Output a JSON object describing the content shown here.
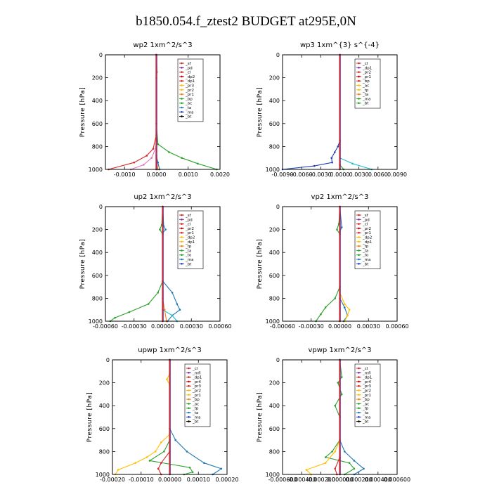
{
  "figure": {
    "title": "b1850.054.f_ztest2  BUDGET at295E,0N"
  },
  "chart_data": [
    {
      "type": "line",
      "title": "wp2  1xm^2/s^3",
      "ylabel": "Pressure [hPa]",
      "xlim": [
        -0.0016,
        0.002
      ],
      "ylim": [
        1000,
        0
      ],
      "xticks": [
        -0.001,
        0.0,
        0.001,
        0.002
      ],
      "xtick_labels": [
        "-0.0010",
        "0.0000",
        "0.0010",
        "0.0020"
      ],
      "yticks": [
        0,
        200,
        400,
        600,
        800,
        1000
      ],
      "ytick_labels": [
        "0",
        "200",
        "400",
        "600",
        "800",
        "1000"
      ],
      "legend": [
        "_sf",
        "_pd",
        "_cl",
        "_dp2",
        "_dp1",
        "_pr3",
        "_pr2",
        "_pr1",
        "_bp",
        "_ac",
        "_ta",
        "_ma",
        "_bt"
      ],
      "legend_loc": "top-right",
      "series": [
        {
          "color": "#2ca02c",
          "profile": [
            [
              0,
              0
            ],
            [
              600,
              0
            ],
            [
              780,
              5e-05
            ],
            [
              850,
              0.0004
            ],
            [
              900,
              0.0008
            ],
            [
              950,
              0.0013
            ],
            [
              1000,
              0.0019
            ]
          ]
        },
        {
          "color": "#d62728",
          "profile": [
            [
              0,
              0
            ],
            [
              700,
              0
            ],
            [
              820,
              -0.0001
            ],
            [
              880,
              -0.0003
            ],
            [
              940,
              -0.0007
            ],
            [
              1000,
              -0.0015
            ]
          ]
        },
        {
          "color": "#e377c2",
          "profile": [
            [
              0,
              0
            ],
            [
              800,
              0
            ],
            [
              900,
              -0.00015
            ],
            [
              960,
              -0.0004
            ],
            [
              1000,
              -0.0008
            ]
          ]
        },
        {
          "color": "#1f77b4",
          "profile": [
            [
              0,
              0
            ],
            [
              880,
              0
            ],
            [
              940,
              5e-05
            ],
            [
              1000,
              0.0001
            ]
          ]
        },
        {
          "color": "#ff7f0e",
          "profile": [
            [
              0,
              0
            ],
            [
              150,
              2e-05
            ],
            [
              200,
              0
            ],
            [
              900,
              0
            ],
            [
              1000,
              5e-05
            ]
          ]
        },
        {
          "color": "#7030a0",
          "profile": [
            [
              0,
              0
            ],
            [
              1000,
              0
            ]
          ]
        }
      ]
    },
    {
      "type": "line",
      "title": "wp3  1xm^{3} s^{-4}",
      "ylabel": "Pressure [hPa]",
      "xlim": [
        -0.009,
        0.009
      ],
      "ylim": [
        1000,
        0
      ],
      "xticks": [
        -0.009,
        -0.006,
        -0.003,
        0.0,
        0.003,
        0.006,
        0.009
      ],
      "xtick_labels": [
        "-0.0090",
        "-0.0060",
        "-0.0030",
        "0.0000",
        "0.0030",
        "0.0060",
        "0.0090"
      ],
      "yticks": [
        0,
        200,
        400,
        600,
        800,
        1000
      ],
      "ytick_labels": [
        "0",
        "200",
        "400",
        "600",
        "800",
        "1000"
      ],
      "legend": [
        "_cl",
        "_dp1",
        "_pr2",
        "_pr1",
        "_bp",
        "_ac",
        "_tp",
        "_ta",
        "_ma",
        "_bt"
      ],
      "legend_loc": "top-right",
      "series": [
        {
          "color": "#1f3fbf",
          "profile": [
            [
              0,
              0
            ],
            [
              750,
              0
            ],
            [
              800,
              -0.0003
            ],
            [
              850,
              -0.0008
            ],
            [
              900,
              -0.0013
            ],
            [
              940,
              -0.0012
            ],
            [
              970,
              -0.004
            ],
            [
              1000,
              -0.009
            ]
          ]
        },
        {
          "color": "#17becf",
          "profile": [
            [
              0,
              0
            ],
            [
              900,
              0
            ],
            [
              950,
              0.002
            ],
            [
              1000,
              0.005
            ]
          ]
        },
        {
          "color": "#2ca02c",
          "profile": [
            [
              0,
              0
            ],
            [
              960,
              0
            ],
            [
              1000,
              0.0006
            ]
          ]
        },
        {
          "color": "#d62728",
          "profile": [
            [
              0,
              0
            ],
            [
              1000,
              0
            ]
          ]
        }
      ]
    },
    {
      "type": "line",
      "title": "up2  1xm^2/s^3",
      "ylabel": "Pressure [hPa]",
      "xlim": [
        -0.0006,
        0.0006
      ],
      "ylim": [
        1000,
        0
      ],
      "xticks": [
        -0.0006,
        -0.0003,
        0.0,
        0.0003,
        0.0006
      ],
      "xtick_labels": [
        "-0.00060",
        "-0.00030",
        "0.00000",
        "0.00030",
        "0.00060"
      ],
      "yticks": [
        0,
        200,
        400,
        600,
        800,
        1000
      ],
      "ytick_labels": [
        "0",
        "200",
        "400",
        "600",
        "800",
        "1000"
      ],
      "legend": [
        "_sf",
        "_pd",
        "_cl",
        "_pr2",
        "_pr1",
        "_dp2",
        "_dp1",
        "_tp",
        "_ta",
        "_to",
        "_ma",
        "_bt"
      ],
      "legend_loc": "top-right",
      "series": [
        {
          "color": "#2ca02c",
          "profile": [
            [
              0,
              0
            ],
            [
              160,
              -1e-05
            ],
            [
              200,
              -3e-05
            ],
            [
              240,
              0
            ],
            [
              650,
              0
            ],
            [
              750,
              -5e-05
            ],
            [
              850,
              -0.00015
            ],
            [
              920,
              -0.00035
            ],
            [
              970,
              -0.0005
            ],
            [
              1000,
              -0.00055
            ]
          ]
        },
        {
          "color": "#1f77b4",
          "profile": [
            [
              0,
              0
            ],
            [
              170,
              1e-05
            ],
            [
              200,
              3e-05
            ],
            [
              230,
              0
            ],
            [
              650,
              0
            ],
            [
              750,
              0.0001
            ],
            [
              850,
              0.00015
            ],
            [
              900,
              0.00018
            ],
            [
              950,
              0.0001
            ],
            [
              1000,
              5e-05
            ]
          ]
        },
        {
          "color": "#ff7f0e",
          "profile": [
            [
              0,
              0
            ],
            [
              800,
              0
            ],
            [
              900,
              2e-05
            ],
            [
              1000,
              4e-05
            ]
          ]
        },
        {
          "color": "#17becf",
          "profile": [
            [
              0,
              0
            ],
            [
              900,
              0
            ],
            [
              950,
              0.0001
            ],
            [
              1000,
              0.00015
            ]
          ]
        },
        {
          "color": "#d62728",
          "profile": [
            [
              0,
              0
            ],
            [
              1000,
              0
            ]
          ]
        }
      ]
    },
    {
      "type": "line",
      "title": "vp2  1xm^2/s^3",
      "ylabel": "Pressure [hPa]",
      "xlim": [
        -0.0006,
        0.0006
      ],
      "ylim": [
        1000,
        0
      ],
      "xticks": [
        -0.0006,
        -0.0003,
        0.0,
        0.0003,
        0.0006
      ],
      "xtick_labels": [
        "-0.00060",
        "-0.00030",
        "0.00000",
        "0.00030",
        "0.00060"
      ],
      "yticks": [
        0,
        200,
        400,
        600,
        800,
        1000
      ],
      "ytick_labels": [
        "0",
        "200",
        "400",
        "600",
        "800",
        "1000"
      ],
      "legend": [
        "_sf",
        "_pd",
        "_cl",
        "_pr2",
        "_pr1",
        "_dp2",
        "_dp1",
        "_tp",
        "_ta",
        "_to",
        "_ma",
        "_bt"
      ],
      "legend_loc": "top-right",
      "series": [
        {
          "color": "#2ca02c",
          "profile": [
            [
              0,
              0
            ],
            [
              150,
              -1e-05
            ],
            [
              200,
              -3e-05
            ],
            [
              240,
              0
            ],
            [
              700,
              0
            ],
            [
              800,
              -5e-05
            ],
            [
              880,
              -0.00015
            ],
            [
              940,
              -0.0002
            ],
            [
              1000,
              -0.00025
            ]
          ]
        },
        {
          "color": "#1f77b4",
          "profile": [
            [
              0,
              0
            ],
            [
              180,
              2e-05
            ],
            [
              220,
              0
            ],
            [
              800,
              0
            ],
            [
              880,
              5e-05
            ],
            [
              950,
              8e-05
            ],
            [
              1000,
              4e-05
            ]
          ]
        },
        {
          "color": "#ffbf00",
          "profile": [
            [
              0,
              0
            ],
            [
              750,
              0
            ],
            [
              850,
              5e-05
            ],
            [
              900,
              0.0001
            ],
            [
              950,
              8e-05
            ],
            [
              1000,
              5e-05
            ]
          ]
        },
        {
          "color": "#d62728",
          "profile": [
            [
              0,
              0
            ],
            [
              1000,
              0
            ]
          ]
        }
      ]
    },
    {
      "type": "line",
      "title": "upwp  1xm^2/s^3",
      "ylabel": "Pressure [hPa]",
      "xlim": [
        -0.0002,
        0.0002
      ],
      "ylim": [
        1000,
        0
      ],
      "xticks": [
        -0.0002,
        -0.0001,
        0.0,
        0.0001,
        0.0002
      ],
      "xtick_labels": [
        "-0.00020",
        "-0.00010",
        "0.00000",
        "0.00010",
        "0.00020"
      ],
      "yticks": [
        0,
        200,
        400,
        600,
        800,
        1000
      ],
      "ytick_labels": [
        "0",
        "200",
        "400",
        "600",
        "800",
        "1000"
      ],
      "legend": [
        "_cl",
        "_mfl",
        "_dp1",
        "_pr4",
        "_pr3",
        "_pr2",
        "_pr1",
        "_bp",
        "_ac",
        "_tp",
        "_ta",
        "_ma",
        "_bt"
      ],
      "legend_loc": "top-right",
      "series": [
        {
          "color": "#ffbf00",
          "profile": [
            [
              0,
              0
            ],
            [
              120,
              0
            ],
            [
              170,
              -1e-05
            ],
            [
              220,
              0
            ],
            [
              650,
              0
            ],
            [
              720,
              -3e-05
            ],
            [
              800,
              -5e-05
            ],
            [
              850,
              -8e-05
            ],
            [
              900,
              -0.00012
            ],
            [
              960,
              -0.00018
            ],
            [
              1000,
              -0.00019
            ]
          ]
        },
        {
          "color": "#1f77b4",
          "profile": [
            [
              0,
              0
            ],
            [
              600,
              0
            ],
            [
              700,
              2e-05
            ],
            [
              800,
              6e-05
            ],
            [
              900,
              0.00012
            ],
            [
              950,
              0.00018
            ],
            [
              1000,
              0.00015
            ]
          ]
        },
        {
          "color": "#2ca02c",
          "profile": [
            [
              0,
              0
            ],
            [
              700,
              0
            ],
            [
              800,
              -2e-05
            ],
            [
              880,
              -7e-05
            ],
            [
              940,
              7e-05
            ],
            [
              980,
              8e-05
            ],
            [
              1000,
              5e-05
            ]
          ]
        },
        {
          "color": "#d62728",
          "profile": [
            [
              0,
              0
            ],
            [
              800,
              0
            ],
            [
              900,
              -3e-05
            ],
            [
              950,
              -4e-05
            ],
            [
              1000,
              -3e-05
            ]
          ]
        },
        {
          "color": "#7030a0",
          "profile": [
            [
              0,
              0
            ],
            [
              1000,
              0
            ]
          ]
        }
      ]
    },
    {
      "type": "line",
      "title": "vpwp  1xm^2/s^3",
      "ylabel": "Pressure [hPa]",
      "xlim": [
        -0.0006,
        0.0006
      ],
      "ylim": [
        1000,
        0
      ],
      "xticks": [
        -0.0006,
        -0.0004,
        -0.0002,
        0.0,
        0.0002,
        0.0004,
        0.0006
      ],
      "xtick_labels": [
        "-0.000600",
        "-0.000400",
        "-0.000200",
        "0.000000",
        "0.000200",
        "0.000400",
        "0.000600"
      ],
      "yticks": [
        0,
        200,
        400,
        600,
        800,
        1000
      ],
      "ytick_labels": [
        "0",
        "200",
        "400",
        "600",
        "800",
        "1000"
      ],
      "legend": [
        "_cl",
        "_mfl",
        "_dp1",
        "_pr4",
        "_pr3",
        "_pr2",
        "_pr1",
        "_bp",
        "_ac",
        "_tp",
        "_ta",
        "_ma",
        "_bt"
      ],
      "legend_loc": "top-right",
      "series": [
        {
          "color": "#2ca02c",
          "profile": [
            [
              0,
              0
            ],
            [
              150,
              2e-05
            ],
            [
              200,
              -2e-05
            ],
            [
              300,
              2e-05
            ],
            [
              400,
              -5e-05
            ],
            [
              500,
              0
            ],
            [
              700,
              0
            ],
            [
              800,
              -8e-05
            ],
            [
              850,
              -0.00015
            ],
            [
              900,
              0.0001
            ],
            [
              950,
              0.00015
            ],
            [
              1000,
              5e-05
            ]
          ]
        },
        {
          "color": "#1f77b4",
          "profile": [
            [
              0,
              0
            ],
            [
              700,
              0
            ],
            [
              800,
              5e-05
            ],
            [
              880,
              0.00015
            ],
            [
              950,
              0.00025
            ],
            [
              1000,
              0.00015
            ]
          ]
        },
        {
          "color": "#ffbf00",
          "profile": [
            [
              0,
              0
            ],
            [
              700,
              0
            ],
            [
              800,
              -5e-05
            ],
            [
              900,
              -0.00015
            ],
            [
              960,
              -0.00035
            ],
            [
              1000,
              -0.0003
            ]
          ]
        },
        {
          "color": "#d62728",
          "profile": [
            [
              0,
              0
            ],
            [
              850,
              0
            ],
            [
              950,
              -5e-05
            ],
            [
              1000,
              -3e-05
            ]
          ]
        },
        {
          "color": "#7030a0",
          "profile": [
            [
              0,
              0
            ],
            [
              1000,
              0
            ]
          ]
        }
      ]
    }
  ]
}
